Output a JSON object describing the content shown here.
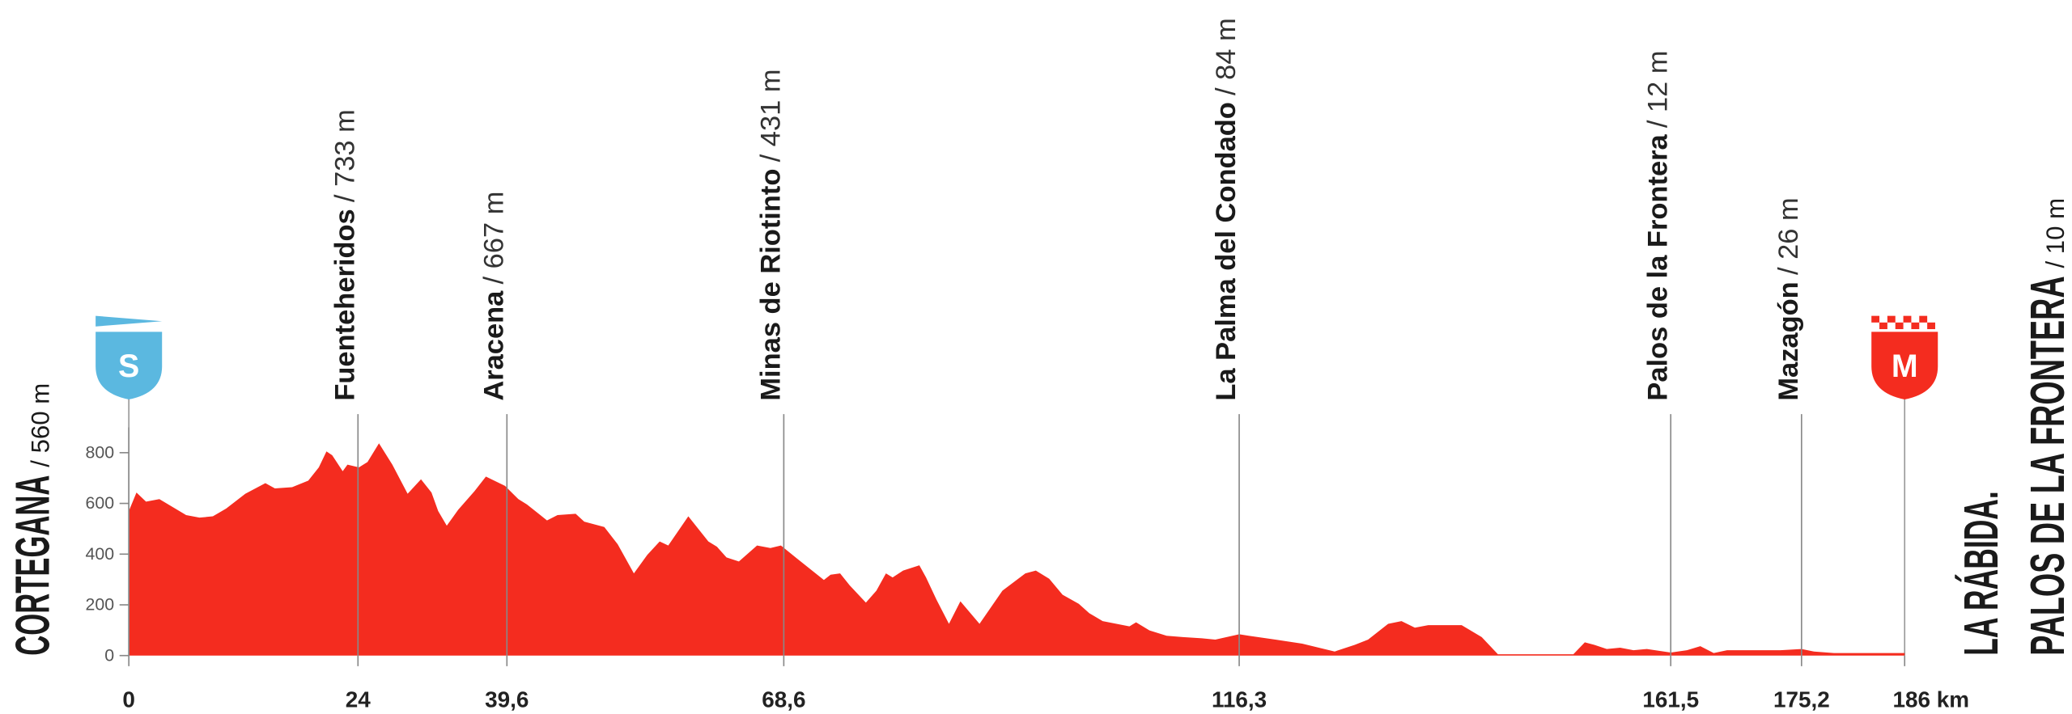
{
  "chart_data": {
    "type": "area",
    "color": "#f42c1f",
    "x": [
      0,
      0.8,
      1.8,
      3.2,
      6,
      7.4,
      8.8,
      10.2,
      12.2,
      14.3,
      15.3,
      17.1,
      18.8,
      19.9,
      20.7,
      21.3,
      22.4,
      22.9,
      24.1,
      25,
      26.2,
      27.6,
      29.2,
      30.6,
      31.7,
      32.4,
      33.3,
      34.5,
      36.2,
      37.4,
      39.4,
      40.8,
      41.7,
      43.8,
      44.9,
      46.8,
      47.7,
      49.8,
      51.2,
      52.9,
      54.3,
      55.6,
      56.5,
      58.6,
      60.7,
      61.6,
      62.6,
      63.9,
      65.8,
      67.2,
      68.3,
      70,
      72.8,
      73.5,
      74.5,
      75.5,
      77.2,
      78.3,
      79.3,
      80,
      81.1,
      82.8,
      83.5,
      84.6,
      85.9,
      87.1,
      89.1,
      91.5,
      93.9,
      95,
      96.4,
      97.8,
      99.5,
      100.6,
      102,
      104.8,
      105.5,
      106.9,
      108.7,
      110.4,
      112.4,
      113.8,
      116.3,
      117.3,
      120.1,
      122.9,
      126.3,
      128.4,
      129.8,
      131.9,
      133.3,
      134.7,
      136.1,
      139.6,
      141.7,
      143.4,
      151.3,
      152.5,
      153.5,
      154.8,
      156.2,
      157.6,
      159,
      161.5,
      163.2,
      164.6,
      166,
      167.4,
      170.2,
      173,
      175.2,
      176.5,
      178.6,
      181.3,
      186
    ],
    "values": [
      570,
      643,
      607,
      617,
      554,
      544,
      549,
      580,
      638,
      680,
      659,
      664,
      690,
      742,
      805,
      790,
      727,
      753,
      742,
      763,
      837,
      753,
      638,
      695,
      643,
      570,
      512,
      575,
      648,
      706,
      669,
      617,
      596,
      533,
      554,
      559,
      528,
      507,
      439,
      324,
      397,
      450,
      434,
      549,
      450,
      429,
      387,
      371,
      434,
      424,
      434,
      382,
      298,
      319,
      324,
      277,
      209,
      256,
      324,
      308,
      335,
      356,
      308,
      220,
      125,
      214,
      125,
      256,
      324,
      335,
      303,
      240,
      204,
      167,
      136,
      115,
      131,
      99,
      78,
      73,
      68,
      63,
      84,
      78,
      63,
      47,
      16,
      42,
      63,
      125,
      136,
      110,
      120,
      120,
      73,
      5,
      5,
      52,
      42,
      26,
      31,
      21,
      26,
      12,
      21,
      37,
      10,
      21,
      21,
      21,
      26,
      16,
      10,
      10,
      10
    ],
    "xlim": [
      0,
      186
    ],
    "ylim": [
      0,
      900
    ],
    "yticks": [
      0,
      200,
      400,
      600,
      800
    ],
    "xticks": [
      0,
      24,
      {
        "value": 39.6,
        "label": "39,6"
      },
      {
        "value": 68.6,
        "label": "68,6"
      },
      {
        "value": 116.3,
        "label": "116,3"
      },
      {
        "value": 161.5,
        "label": "161,5"
      },
      {
        "value": 175.2,
        "label": "175,2"
      },
      {
        "value": 186,
        "label": "186 km"
      }
    ],
    "waypoints": [
      {
        "name": "Fuenteheridos",
        "altitude": "/ 733 m"
      },
      {
        "name": "Aracena",
        "altitude": "/ 667 m"
      },
      {
        "name": "Minas de Riotinto",
        "altitude": "/ 431 m"
      },
      {
        "name": "La Palma del Condado",
        "altitude": "/ 84 m"
      },
      {
        "name": "Palos de la Frontera",
        "altitude": "/ 12 m"
      },
      {
        "name": "Mazagón",
        "altitude": "/ 26 m"
      }
    ],
    "start": {
      "name": "CORTEGANA",
      "altitude": "/ 560 m",
      "marker": "S"
    },
    "finish": {
      "name_line1": "LA RÁBIDA.",
      "name_line2": "PALOS DE LA FRONTERA",
      "altitude": "/ 10 m",
      "marker": "M"
    }
  }
}
